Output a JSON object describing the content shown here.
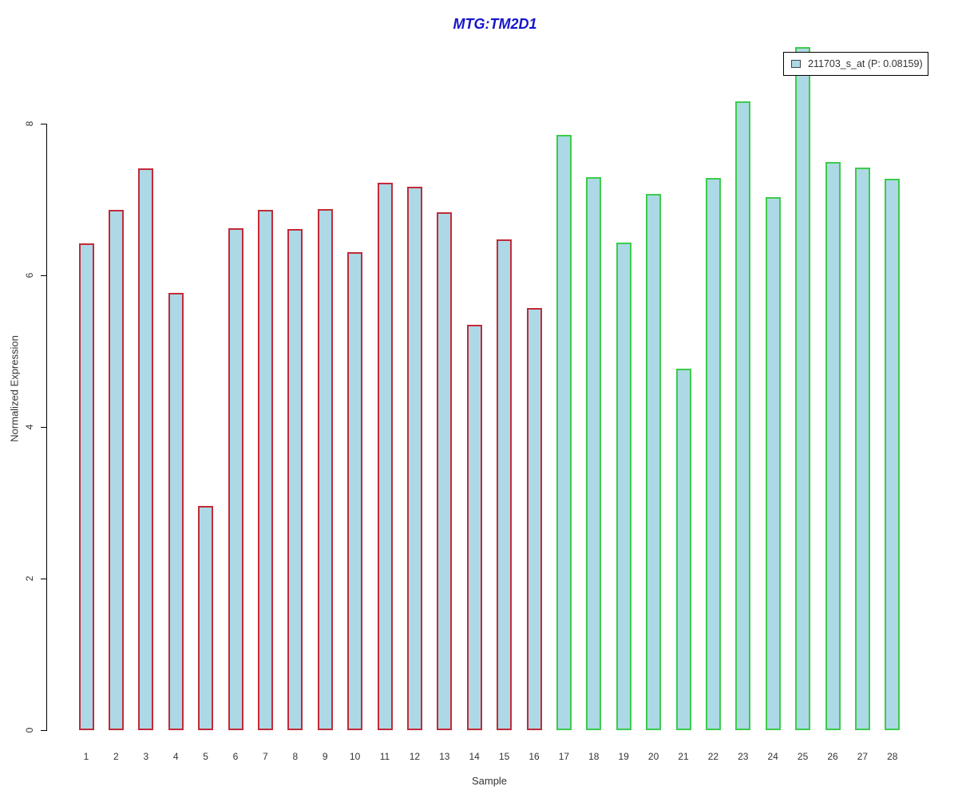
{
  "title": {
    "text": "MTG:TM2D1",
    "color": "#1515CC"
  },
  "legend": {
    "label": "211703_s_at (P: 0.08159)",
    "swatch_fill": "#ADD8E6",
    "swatch_border": "#37474F",
    "box_border": "#000000"
  },
  "axes": {
    "x_label": "Sample",
    "y_label": "Normalized Expression",
    "y_ticks": [
      "0",
      "2",
      "4",
      "6",
      "8"
    ]
  },
  "colors": {
    "bar_fill": "#ADD8E6",
    "group1_border": "#C22B38",
    "group2_border": "#3BCC4A",
    "axis": "#000000",
    "tick_text": "#333333"
  },
  "chart_data": {
    "type": "bar",
    "title": "MTG:TM2D1",
    "xlabel": "Sample",
    "ylabel": "Normalized Expression",
    "ylim": [
      0,
      9.2
    ],
    "y_ticks": [
      0,
      2,
      4,
      6,
      8
    ],
    "grid": false,
    "legend_position": "top-right",
    "bar_fill": "#ADD8E6",
    "categories": [
      "1",
      "2",
      "3",
      "4",
      "5",
      "6",
      "7",
      "8",
      "9",
      "10",
      "11",
      "12",
      "13",
      "14",
      "15",
      "16",
      "17",
      "18",
      "19",
      "20",
      "21",
      "22",
      "23",
      "24",
      "25",
      "26",
      "27",
      "28"
    ],
    "series": [
      {
        "name": "211703_s_at (P: 0.08159)",
        "values": [
          6.42,
          6.86,
          7.41,
          5.77,
          2.96,
          6.62,
          6.86,
          6.61,
          6.87,
          6.31,
          7.22,
          7.17,
          6.83,
          5.35,
          6.47,
          5.57,
          7.85,
          7.29,
          6.43,
          7.07,
          4.77,
          7.28,
          8.29,
          7.03,
          9.01,
          7.49,
          7.42,
          7.27
        ]
      }
    ],
    "groups": [
      {
        "name": "samples-1-16",
        "start": 1,
        "end": 16,
        "border_color": "#C22B38"
      },
      {
        "name": "samples-17-28",
        "start": 17,
        "end": 28,
        "border_color": "#3BCC4A"
      }
    ]
  }
}
